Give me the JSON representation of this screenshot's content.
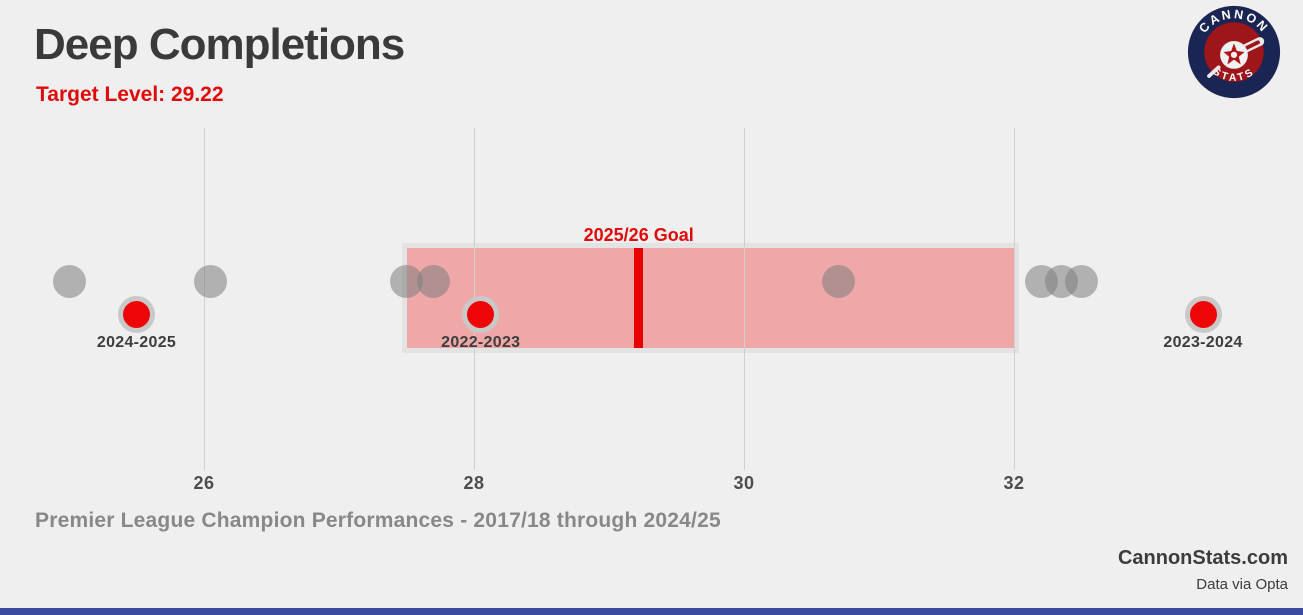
{
  "header": {
    "title": "Deep Completions",
    "subtitle": "Target Level: 29.22"
  },
  "logo": {
    "top_text": "CANNON",
    "bottom_text": "STATS"
  },
  "chart_data": {
    "type": "scatter",
    "title": "Deep Completions",
    "grid": "vertical-only",
    "x_ticks": [
      26,
      28,
      30,
      32
    ],
    "xlim": [
      24.75,
      33.9
    ],
    "goal": {
      "label": "2025/26 Goal",
      "value": 29.22
    },
    "band": {
      "from": 27.5,
      "to": 32.0,
      "color": "#efa7a7",
      "border_color": "#e3e3e3"
    },
    "champion_values": [
      25.0,
      26.05,
      27.5,
      27.7,
      30.7,
      32.2,
      32.35,
      32.5
    ],
    "season_points": [
      {
        "label": "2024-2025",
        "value": 25.5
      },
      {
        "label": "2022-2023",
        "value": 28.05
      },
      {
        "label": "2023-2024",
        "value": 33.4
      }
    ],
    "colors": {
      "champion_dot": "rgba(125,125,125,0.55)",
      "season_dot": "#ee0508",
      "season_dot_ring": "#c9c9c9",
      "goal_line": "#e80000",
      "gridline": "#cfcfcf"
    }
  },
  "footer": {
    "caption": "Premier League Champion Performances - 2017/18 through 2024/25",
    "brand": "CannonStats.com",
    "credit": "Data via Opta"
  }
}
